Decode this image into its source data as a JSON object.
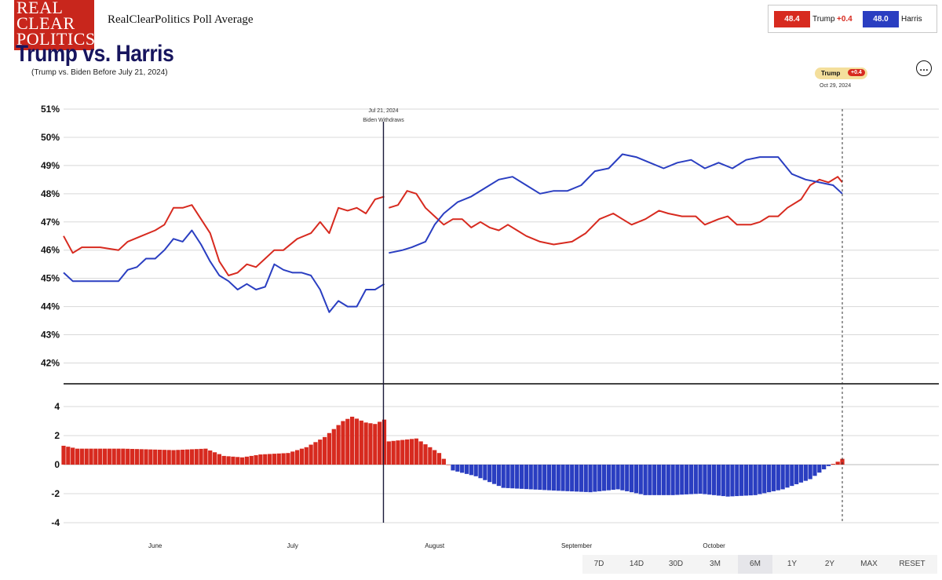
{
  "header": {
    "logo_lines": [
      "REAL",
      "CLEAR",
      "POLITICS"
    ],
    "site_title": "RealClearPolitics Poll Average",
    "main_title": "Trump vs. Harris",
    "subtitle": "(Trump vs. Biden Before July 21, 2024)"
  },
  "legend": {
    "trump_value": "48.4",
    "trump_name": "Trump",
    "trump_spread": "+0.4",
    "harris_value": "48.0",
    "harris_name": "Harris"
  },
  "menu_icon": "…",
  "current_badge": {
    "name": "Trump",
    "spread": "+0.4",
    "date": "Oct 29, 2024"
  },
  "event_marker": {
    "date": "Jul 21, 2024",
    "label": "Biden Withdraws"
  },
  "ranges": {
    "items": [
      "7D",
      "14D",
      "30D",
      "3M",
      "6M",
      "1Y",
      "2Y",
      "MAX",
      "RESET"
    ],
    "active": "6M"
  },
  "colors": {
    "trump": "#d72a1f",
    "harris": "#2a3ec1",
    "title": "#17155e"
  },
  "chart_data": {
    "type": "line",
    "x_start": "2024-05-12",
    "x_end": "2024-10-29",
    "event_date": "2024-07-21",
    "x_tick_labels": [
      {
        "date": "2024-06-01",
        "label": "June"
      },
      {
        "date": "2024-07-01",
        "label": "July"
      },
      {
        "date": "2024-08-01",
        "label": "August"
      },
      {
        "date": "2024-09-01",
        "label": "September"
      },
      {
        "date": "2024-10-01",
        "label": "October"
      }
    ],
    "top_panel": {
      "ylim": [
        41.4,
        51
      ],
      "y_ticks": [
        42,
        43,
        44,
        45,
        46,
        47,
        48,
        49,
        50,
        51
      ],
      "y_tick_labels": [
        "42%",
        "43%",
        "44%",
        "45%",
        "46%",
        "47%",
        "48%",
        "49%",
        "50%",
        "51%"
      ],
      "series": [
        {
          "name": "Trump",
          "color": "#d72a1f",
          "segments": [
            [
              [
                "2024-05-12",
                46.5
              ],
              [
                "2024-05-14",
                45.9
              ],
              [
                "2024-05-16",
                46.1
              ],
              [
                "2024-05-20",
                46.1
              ],
              [
                "2024-05-24",
                46.0
              ],
              [
                "2024-05-26",
                46.3
              ],
              [
                "2024-05-29",
                46.5
              ],
              [
                "2024-06-01",
                46.7
              ],
              [
                "2024-06-03",
                46.9
              ],
              [
                "2024-06-05",
                47.5
              ],
              [
                "2024-06-07",
                47.5
              ],
              [
                "2024-06-09",
                47.6
              ],
              [
                "2024-06-11",
                47.1
              ],
              [
                "2024-06-13",
                46.6
              ],
              [
                "2024-06-15",
                45.6
              ],
              [
                "2024-06-17",
                45.1
              ],
              [
                "2024-06-19",
                45.2
              ],
              [
                "2024-06-21",
                45.5
              ],
              [
                "2024-06-23",
                45.4
              ],
              [
                "2024-06-25",
                45.7
              ],
              [
                "2024-06-27",
                46.0
              ],
              [
                "2024-06-29",
                46.0
              ],
              [
                "2024-07-02",
                46.4
              ],
              [
                "2024-07-05",
                46.6
              ],
              [
                "2024-07-07",
                47.0
              ],
              [
                "2024-07-09",
                46.6
              ],
              [
                "2024-07-11",
                47.5
              ],
              [
                "2024-07-13",
                47.4
              ],
              [
                "2024-07-15",
                47.5
              ],
              [
                "2024-07-17",
                47.3
              ],
              [
                "2024-07-19",
                47.8
              ],
              [
                "2024-07-21",
                47.9
              ]
            ],
            [
              [
                "2024-07-22",
                47.5
              ],
              [
                "2024-07-24",
                47.6
              ],
              [
                "2024-07-26",
                48.1
              ],
              [
                "2024-07-28",
                48.0
              ],
              [
                "2024-07-30",
                47.5
              ],
              [
                "2024-08-01",
                47.2
              ],
              [
                "2024-08-03",
                46.9
              ],
              [
                "2024-08-05",
                47.1
              ],
              [
                "2024-08-07",
                47.1
              ],
              [
                "2024-08-09",
                46.8
              ],
              [
                "2024-08-11",
                47.0
              ],
              [
                "2024-08-13",
                46.8
              ],
              [
                "2024-08-15",
                46.7
              ],
              [
                "2024-08-17",
                46.9
              ],
              [
                "2024-08-19",
                46.7
              ],
              [
                "2024-08-21",
                46.5
              ],
              [
                "2024-08-24",
                46.3
              ],
              [
                "2024-08-27",
                46.2
              ],
              [
                "2024-08-31",
                46.3
              ],
              [
                "2024-09-03",
                46.6
              ],
              [
                "2024-09-06",
                47.1
              ],
              [
                "2024-09-09",
                47.3
              ],
              [
                "2024-09-11",
                47.1
              ],
              [
                "2024-09-13",
                46.9
              ],
              [
                "2024-09-16",
                47.1
              ],
              [
                "2024-09-19",
                47.4
              ],
              [
                "2024-09-21",
                47.3
              ],
              [
                "2024-09-24",
                47.2
              ],
              [
                "2024-09-27",
                47.2
              ],
              [
                "2024-09-29",
                46.9
              ],
              [
                "2024-10-02",
                47.1
              ],
              [
                "2024-10-04",
                47.2
              ],
              [
                "2024-10-06",
                46.9
              ],
              [
                "2024-10-09",
                46.9
              ],
              [
                "2024-10-11",
                47.0
              ],
              [
                "2024-10-13",
                47.2
              ],
              [
                "2024-10-15",
                47.2
              ],
              [
                "2024-10-17",
                47.5
              ],
              [
                "2024-10-20",
                47.8
              ],
              [
                "2024-10-22",
                48.3
              ],
              [
                "2024-10-24",
                48.5
              ],
              [
                "2024-10-26",
                48.4
              ],
              [
                "2024-10-28",
                48.6
              ],
              [
                "2024-10-29",
                48.4
              ]
            ]
          ]
        },
        {
          "name": "Harris",
          "color": "#2a3ec1",
          "segments": [
            [
              [
                "2024-05-12",
                45.2
              ],
              [
                "2024-05-14",
                44.9
              ],
              [
                "2024-05-16",
                44.9
              ],
              [
                "2024-05-24",
                44.9
              ],
              [
                "2024-05-26",
                45.3
              ],
              [
                "2024-05-28",
                45.4
              ],
              [
                "2024-05-30",
                45.7
              ],
              [
                "2024-06-01",
                45.7
              ],
              [
                "2024-06-03",
                46.0
              ],
              [
                "2024-06-05",
                46.4
              ],
              [
                "2024-06-07",
                46.3
              ],
              [
                "2024-06-09",
                46.7
              ],
              [
                "2024-06-11",
                46.2
              ],
              [
                "2024-06-13",
                45.6
              ],
              [
                "2024-06-15",
                45.1
              ],
              [
                "2024-06-17",
                44.9
              ],
              [
                "2024-06-19",
                44.6
              ],
              [
                "2024-06-21",
                44.8
              ],
              [
                "2024-06-23",
                44.6
              ],
              [
                "2024-06-25",
                44.7
              ],
              [
                "2024-06-27",
                45.5
              ],
              [
                "2024-06-29",
                45.3
              ],
              [
                "2024-07-01",
                45.2
              ],
              [
                "2024-07-03",
                45.2
              ],
              [
                "2024-07-05",
                45.1
              ],
              [
                "2024-07-07",
                44.6
              ],
              [
                "2024-07-09",
                43.8
              ],
              [
                "2024-07-11",
                44.2
              ],
              [
                "2024-07-13",
                44.0
              ],
              [
                "2024-07-15",
                44.0
              ],
              [
                "2024-07-17",
                44.6
              ],
              [
                "2024-07-19",
                44.6
              ],
              [
                "2024-07-21",
                44.8
              ]
            ],
            [
              [
                "2024-07-22",
                45.9
              ],
              [
                "2024-07-25",
                46.0
              ],
              [
                "2024-07-27",
                46.1
              ],
              [
                "2024-07-30",
                46.3
              ],
              [
                "2024-08-01",
                46.9
              ],
              [
                "2024-08-03",
                47.3
              ],
              [
                "2024-08-06",
                47.7
              ],
              [
                "2024-08-09",
                47.9
              ],
              [
                "2024-08-12",
                48.2
              ],
              [
                "2024-08-15",
                48.5
              ],
              [
                "2024-08-18",
                48.6
              ],
              [
                "2024-08-21",
                48.3
              ],
              [
                "2024-08-24",
                48.0
              ],
              [
                "2024-08-27",
                48.1
              ],
              [
                "2024-08-30",
                48.1
              ],
              [
                "2024-09-02",
                48.3
              ],
              [
                "2024-09-05",
                48.8
              ],
              [
                "2024-09-08",
                48.9
              ],
              [
                "2024-09-11",
                49.4
              ],
              [
                "2024-09-14",
                49.3
              ],
              [
                "2024-09-17",
                49.1
              ],
              [
                "2024-09-20",
                48.9
              ],
              [
                "2024-09-23",
                49.1
              ],
              [
                "2024-09-26",
                49.2
              ],
              [
                "2024-09-29",
                48.9
              ],
              [
                "2024-10-02",
                49.1
              ],
              [
                "2024-10-05",
                48.9
              ],
              [
                "2024-10-08",
                49.2
              ],
              [
                "2024-10-11",
                49.3
              ],
              [
                "2024-10-13",
                49.3
              ],
              [
                "2024-10-15",
                49.3
              ],
              [
                "2024-10-18",
                48.7
              ],
              [
                "2024-10-21",
                48.5
              ],
              [
                "2024-10-24",
                48.4
              ],
              [
                "2024-10-27",
                48.3
              ],
              [
                "2024-10-29",
                48.0
              ]
            ]
          ]
        }
      ]
    },
    "bottom_panel": {
      "type": "bar",
      "ylim": [
        -4,
        4
      ],
      "y_ticks": [
        -4,
        -2,
        0,
        2,
        4
      ],
      "y_tick_labels": [
        "-4",
        "-2",
        "0",
        "2",
        "4"
      ],
      "positive_color": "#d72a1f",
      "negative_color": "#2a3ec1",
      "spread_keypoints": [
        [
          "2024-05-12",
          1.3
        ],
        [
          "2024-05-15",
          1.1
        ],
        [
          "2024-05-25",
          1.1
        ],
        [
          "2024-06-05",
          1.0
        ],
        [
          "2024-06-12",
          1.1
        ],
        [
          "2024-06-16",
          0.6
        ],
        [
          "2024-06-20",
          0.5
        ],
        [
          "2024-06-24",
          0.7
        ],
        [
          "2024-06-30",
          0.8
        ],
        [
          "2024-07-04",
          1.2
        ],
        [
          "2024-07-08",
          1.9
        ],
        [
          "2024-07-12",
          3.0
        ],
        [
          "2024-07-14",
          3.3
        ],
        [
          "2024-07-17",
          2.9
        ],
        [
          "2024-07-19",
          2.8
        ],
        [
          "2024-07-21",
          3.1
        ],
        [
          "2024-07-22",
          1.6
        ],
        [
          "2024-07-28",
          1.8
        ],
        [
          "2024-08-02",
          0.8
        ],
        [
          "2024-08-05",
          -0.4
        ],
        [
          "2024-08-10",
          -0.8
        ],
        [
          "2024-08-16",
          -1.6
        ],
        [
          "2024-08-22",
          -1.7
        ],
        [
          "2024-08-28",
          -1.8
        ],
        [
          "2024-09-04",
          -1.9
        ],
        [
          "2024-09-10",
          -1.7
        ],
        [
          "2024-09-16",
          -2.1
        ],
        [
          "2024-09-22",
          -2.1
        ],
        [
          "2024-09-28",
          -2.0
        ],
        [
          "2024-10-04",
          -2.2
        ],
        [
          "2024-10-10",
          -2.1
        ],
        [
          "2024-10-16",
          -1.7
        ],
        [
          "2024-10-22",
          -1.0
        ],
        [
          "2024-10-26",
          -0.1
        ],
        [
          "2024-10-28",
          0.2
        ],
        [
          "2024-10-29",
          0.4
        ]
      ]
    }
  }
}
